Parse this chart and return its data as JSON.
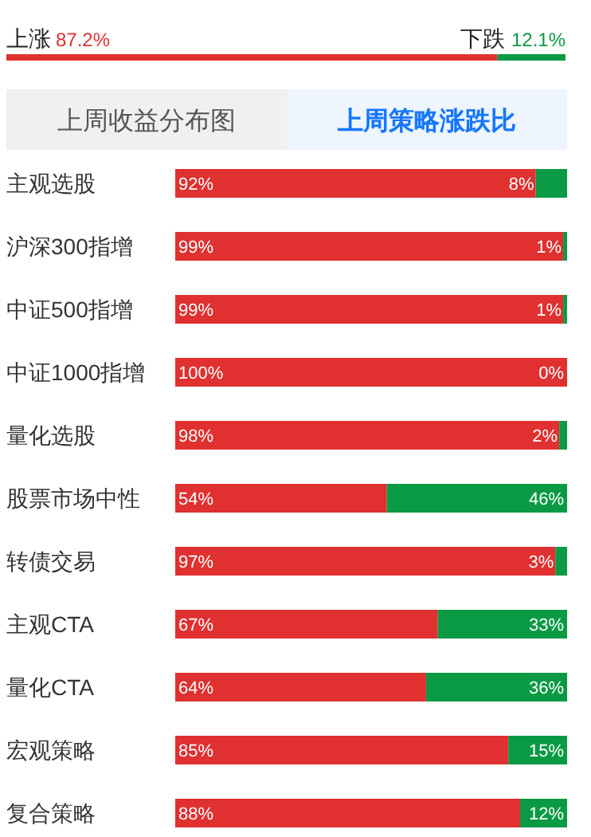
{
  "chart_data": [
    {
      "type": "bar",
      "orientation": "horizontal",
      "stacked": true,
      "categories": [
        null
      ],
      "series": [
        {
          "name": "上涨",
          "color": "#e03030",
          "values": [
            87.2
          ],
          "value_labels": [
            "87.2%"
          ]
        },
        {
          "name": "下跌",
          "color": "#0a9a44",
          "values": [
            12.1
          ],
          "value_labels": [
            "12.1%"
          ]
        }
      ]
    },
    {
      "type": "bar",
      "orientation": "horizontal",
      "stacked": true,
      "title": "上周策略涨跌比",
      "annotations": [
        "上周收益分布图"
      ],
      "categories": [
        "主观选股",
        "沪深300指增",
        "中证500指增",
        "中证1000指增",
        "量化选股",
        "股票市场中性",
        "转债交易",
        "主观CTA",
        "量化CTA",
        "宏观策略",
        "复合策略"
      ],
      "series": [
        {
          "color": "#e03030",
          "values": [
            92,
            99,
            99,
            100,
            98,
            54,
            97,
            67,
            64,
            85,
            88
          ],
          "value_labels": [
            "92%",
            "99%",
            "99%",
            "100%",
            "98%",
            "54%",
            "97%",
            "67%",
            "64%",
            "85%",
            "88%"
          ]
        },
        {
          "color": "#0a9a44",
          "values": [
            8,
            1,
            1,
            0,
            2,
            46,
            3,
            33,
            36,
            15,
            12
          ],
          "value_labels": [
            "8%",
            "1%",
            "1%",
            "0%",
            "2%",
            "46%",
            "3%",
            "33%",
            "36%",
            "15%",
            "12%"
          ]
        }
      ]
    }
  ]
}
